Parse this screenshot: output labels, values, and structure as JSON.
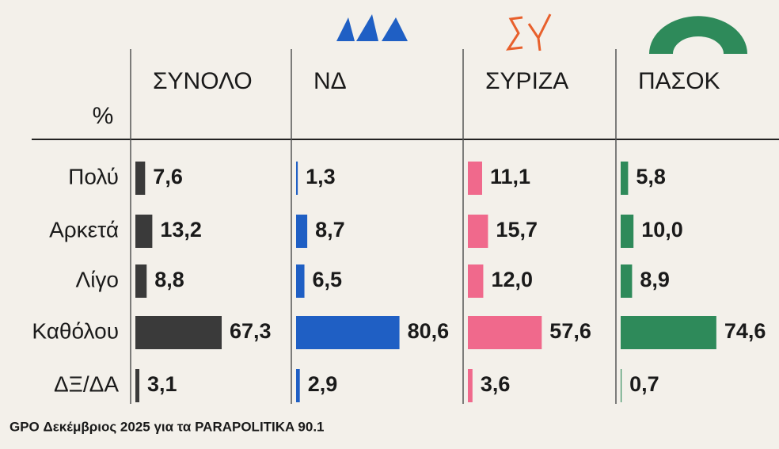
{
  "chart_data": {
    "type": "bar",
    "unit_label": "%",
    "categories": [
      "Πολύ",
      "Αρκετά",
      "Λίγο",
      "Καθόλου",
      "ΔΞ/ΔΑ"
    ],
    "series": [
      {
        "name": "ΣΥΝΟΛΟ",
        "color": "#3a3a3a",
        "values": [
          7.6,
          13.2,
          8.8,
          67.3,
          3.1
        ],
        "value_labels": [
          "7,6",
          "13,2",
          "8,8",
          "67,3",
          "3,1"
        ]
      },
      {
        "name": "ΝΔ",
        "color": "#1f5fc4",
        "values": [
          1.3,
          8.7,
          6.5,
          80.6,
          2.9
        ],
        "value_labels": [
          "1,3",
          "8,7",
          "6,5",
          "80,6",
          "2,9"
        ]
      },
      {
        "name": "ΣΥΡΙΖΑ",
        "color": "#f0698c",
        "values": [
          11.1,
          15.7,
          12.0,
          57.6,
          3.6
        ],
        "value_labels": [
          "11,1",
          "15,7",
          "12,0",
          "57,6",
          "3,6"
        ]
      },
      {
        "name": "ΠΑΣΟΚ",
        "color": "#2e8a5a",
        "values": [
          5.8,
          10.0,
          8.9,
          74.6,
          0.7
        ],
        "value_labels": [
          "5,8",
          "10,0",
          "8,9",
          "74,6",
          "0,7"
        ]
      }
    ],
    "source": "GPO Δεκέμβριος 2025 για τα PARAPOLITIKA 90.1"
  }
}
